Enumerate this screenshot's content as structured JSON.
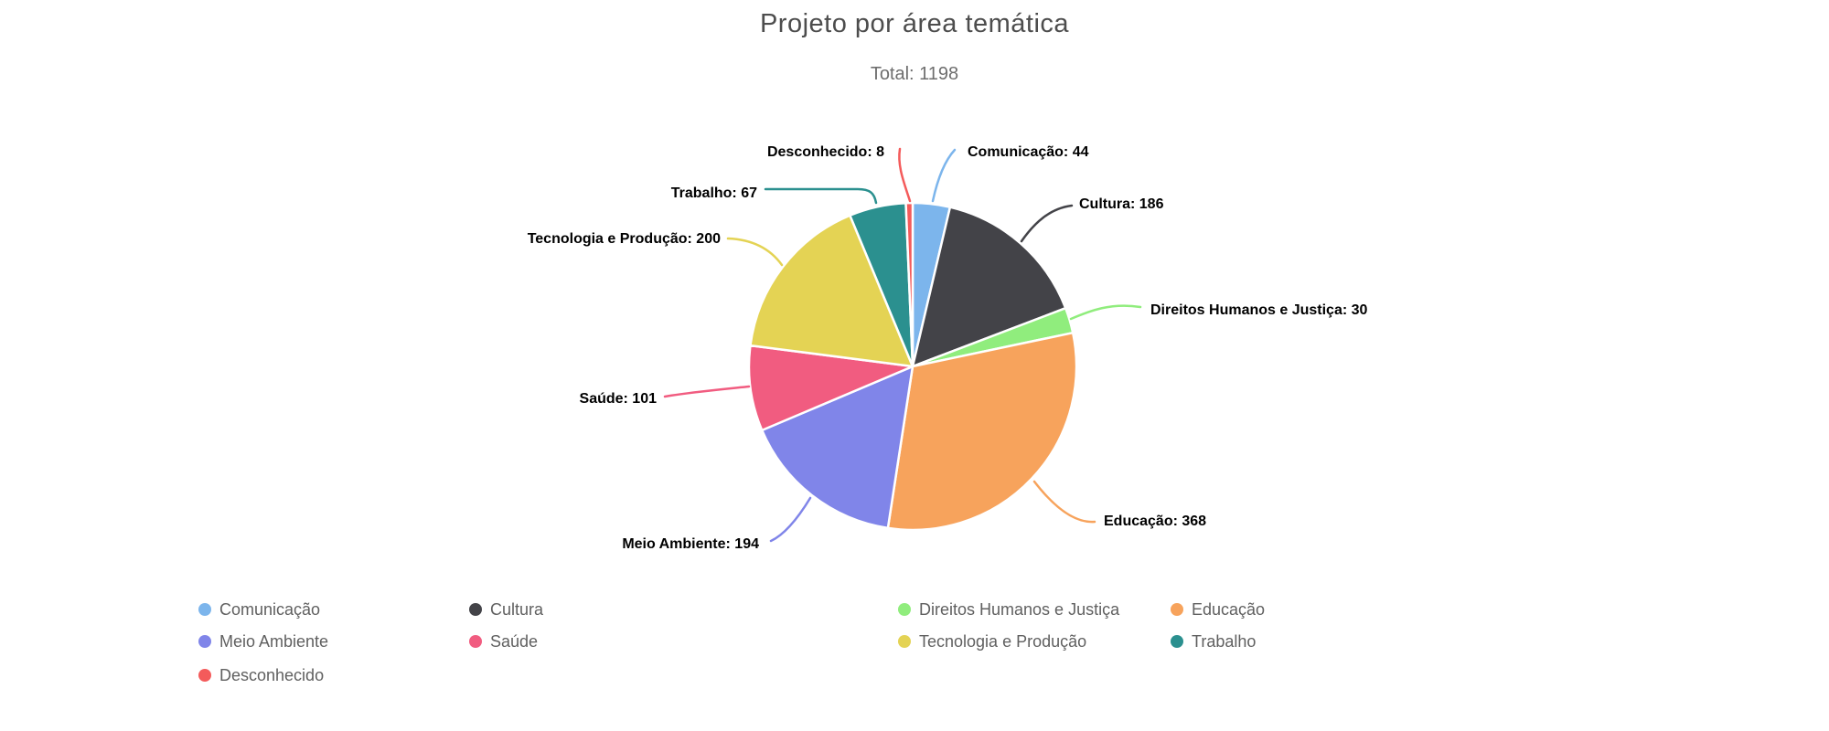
{
  "chart_data": {
    "type": "pie",
    "title": "Projeto por área temática",
    "subtitle": "Total: 1198",
    "total": 1198,
    "label_format": "{name}: {value}",
    "legend_position": "bottom",
    "background_color": "#ffffff",
    "slice_border_color": "#ffffff",
    "label_text_color": "#000000",
    "title_color": "#4d4d4d",
    "subtitle_color": "#6e6e6e",
    "legend_text_color": "#606060",
    "series": [
      {
        "name": "Comunicação",
        "value": 44,
        "color": "#7cb5ec"
      },
      {
        "name": "Cultura",
        "value": 186,
        "color": "#434348"
      },
      {
        "name": "Direitos Humanos e Justiça",
        "value": 30,
        "color": "#90ed7d"
      },
      {
        "name": "Educação",
        "value": 368,
        "color": "#f7a35c"
      },
      {
        "name": "Meio Ambiente",
        "value": 194,
        "color": "#8085e9"
      },
      {
        "name": "Saúde",
        "value": 101,
        "color": "#f15c80"
      },
      {
        "name": "Tecnologia e Produção",
        "value": 200,
        "color": "#e4d354"
      },
      {
        "name": "Trabalho",
        "value": 67,
        "color": "#2b908f"
      },
      {
        "name": "Desconhecido",
        "value": 8,
        "color": "#f45b5b"
      }
    ]
  }
}
